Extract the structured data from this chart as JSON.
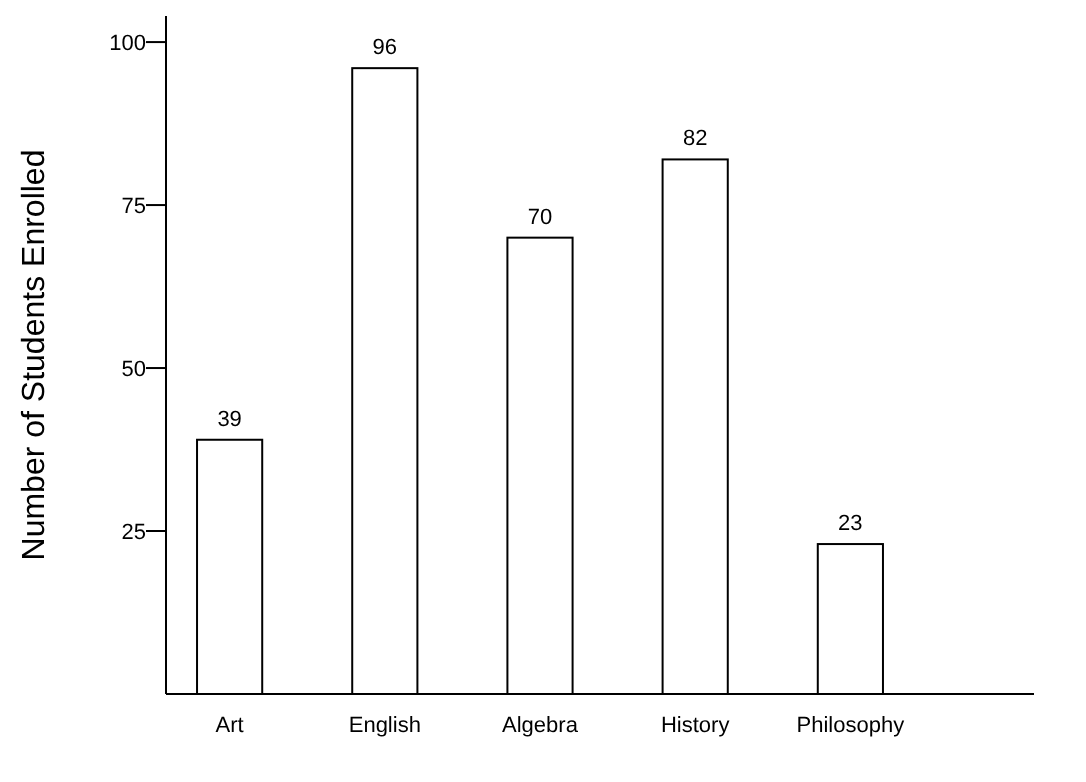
{
  "chart_data": {
    "type": "bar",
    "ylabel": "Number of Students Enrolled",
    "categories": [
      "Art",
      "English",
      "Algebra",
      "History",
      "Philosophy"
    ],
    "values": [
      39,
      96,
      70,
      82,
      23
    ],
    "color": "#ffffff",
    "ylim": [
      0,
      104
    ],
    "yticks": [
      25,
      50,
      75,
      100
    ],
    "data_labels": true
  }
}
